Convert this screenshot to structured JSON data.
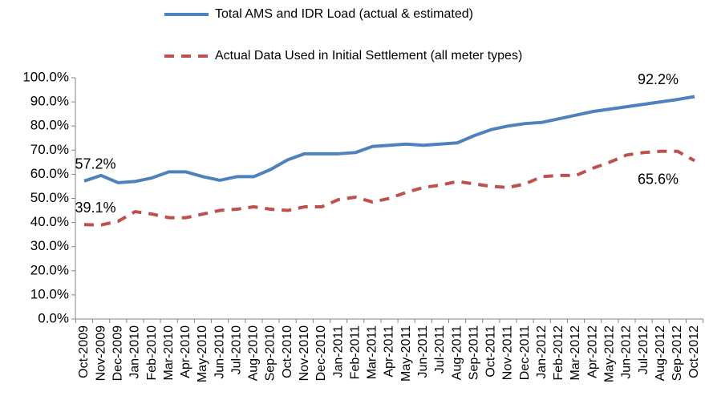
{
  "chart_data": {
    "type": "line",
    "categories": [
      "Oct-2009",
      "Nov-2009",
      "Dec-2009",
      "Jan-2010",
      "Feb-2010",
      "Mar-2010",
      "Apr-2010",
      "May-2010",
      "Jun-2010",
      "Jul-2010",
      "Aug-2010",
      "Sep-2010",
      "Oct-2010",
      "Nov-2010",
      "Dec-2010",
      "Jan-2011",
      "Feb-2011",
      "Mar-2011",
      "Apr-2011",
      "May-2011",
      "Jun-2011",
      "Jul-2011",
      "Aug-2011",
      "Sep-2011",
      "Oct-2011",
      "Nov-2011",
      "Dec-2011",
      "Jan-2012",
      "Feb-2012",
      "Mar-2012",
      "Apr-2012",
      "May-2012",
      "Jun-2012",
      "Jul-2012",
      "Aug-2012",
      "Sep-2012",
      "Oct-2012"
    ],
    "series": [
      {
        "name": "Total AMS and IDR Load (actual & estimated)",
        "color": "#4f81bd",
        "dash": false,
        "values": [
          57.2,
          59.5,
          56.5,
          57,
          58.5,
          61,
          61,
          59,
          57.5,
          59,
          59,
          62,
          66,
          68.5,
          68.5,
          68.5,
          69,
          71.5,
          72,
          72.5,
          72,
          72.5,
          73,
          76,
          78.5,
          80,
          81,
          81.5,
          83,
          84.5,
          86,
          87,
          88,
          89,
          90,
          91,
          92.2
        ],
        "value_labels": [
          "57.2%",
          null,
          null,
          null,
          null,
          null,
          null,
          null,
          null,
          null,
          null,
          null,
          null,
          null,
          null,
          null,
          null,
          null,
          null,
          null,
          null,
          null,
          null,
          null,
          null,
          null,
          null,
          null,
          null,
          null,
          null,
          null,
          null,
          null,
          null,
          null,
          "92.2%"
        ]
      },
      {
        "name": "Actual Data Used in Initial Settlement (all meter types)",
        "color": "#c0504d",
        "dash": true,
        "values": [
          39.1,
          39,
          40.5,
          44.5,
          43.5,
          42,
          42,
          43.5,
          45,
          45.5,
          46.5,
          45.5,
          45,
          46.5,
          46.5,
          49.5,
          50.5,
          48.5,
          50,
          52.5,
          54.5,
          55.5,
          57,
          56,
          55,
          54.5,
          56,
          59,
          59.5,
          59.5,
          62.5,
          65,
          68,
          69,
          69.5,
          69.5,
          65.6
        ],
        "value_labels": [
          "39.1%",
          null,
          null,
          null,
          null,
          null,
          null,
          null,
          null,
          null,
          null,
          null,
          null,
          null,
          null,
          null,
          null,
          null,
          null,
          null,
          null,
          null,
          null,
          null,
          null,
          null,
          null,
          null,
          null,
          null,
          null,
          null,
          null,
          null,
          null,
          null,
          "65.6%"
        ]
      }
    ],
    "ylim": [
      0,
      100
    ],
    "yticks": [
      {
        "value": 0,
        "label": "0.0%"
      },
      {
        "value": 10,
        "label": "10.0%"
      },
      {
        "value": 20,
        "label": "20.0%"
      },
      {
        "value": 30,
        "label": "30.0%"
      },
      {
        "value": 40,
        "label": "40.0%"
      },
      {
        "value": 50,
        "label": "50.0%"
      },
      {
        "value": 60,
        "label": "60.0%"
      },
      {
        "value": 70,
        "label": "70.0%"
      },
      {
        "value": 80,
        "label": "80.0%"
      },
      {
        "value": 90,
        "label": "90.0%"
      },
      {
        "value": 100,
        "label": "100.0%"
      }
    ],
    "grid": false
  }
}
